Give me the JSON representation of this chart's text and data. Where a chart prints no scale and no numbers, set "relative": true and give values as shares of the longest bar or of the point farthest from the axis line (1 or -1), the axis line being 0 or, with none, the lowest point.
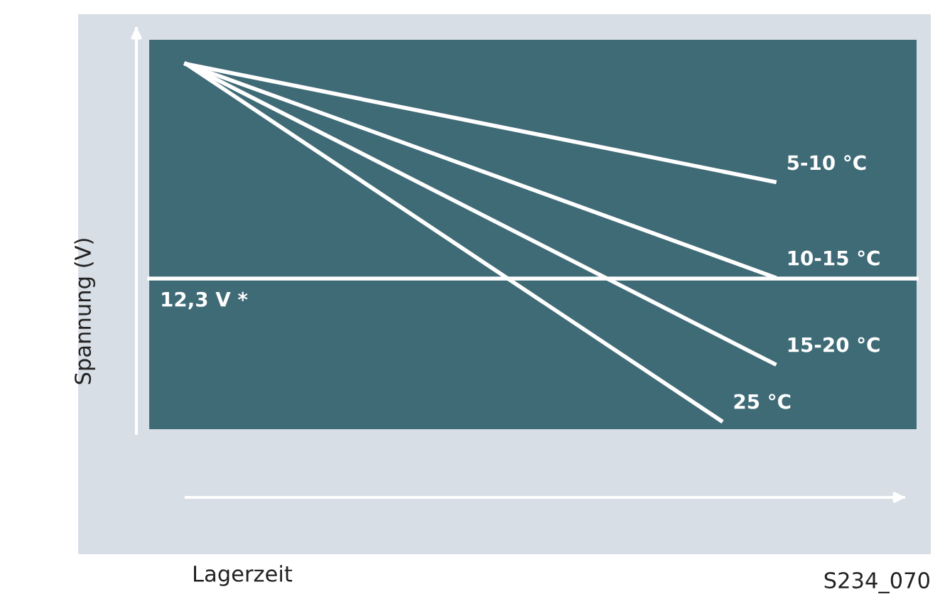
{
  "chart_data": {
    "type": "line",
    "relative": true,
    "xlabel": "Lagerzeit",
    "ylabel": "Spannung (V)",
    "categories": [
      null,
      null,
      null,
      null,
      null,
      null,
      null,
      null,
      null,
      null,
      null,
      null
    ],
    "series": [
      {
        "name": "5-10 °C",
        "color": "#ffffff",
        "values": [
          1,
          null,
          null,
          null,
          null,
          null,
          null,
          null,
          null,
          null,
          null,
          0.728
        ]
      },
      {
        "name": "10-15 °C",
        "color": "#ffffff",
        "values": [
          1,
          null,
          null,
          null,
          null,
          null,
          null,
          null,
          null,
          null,
          null,
          0.508
        ]
      },
      {
        "name": "15-20 °C",
        "color": "#ffffff",
        "values": [
          1,
          null,
          null,
          null,
          null,
          null,
          null,
          null,
          null,
          null,
          null,
          0.308
        ]
      },
      {
        "name": "25 °C",
        "color": "#ffffff",
        "values": [
          1,
          null,
          null,
          null,
          null,
          null,
          null,
          null,
          null,
          null,
          0.177,
          null
        ]
      }
    ],
    "ref_lines": [
      {
        "axis": "y",
        "value": 0.505,
        "label": "12,3 V *",
        "color": "#ffffff"
      }
    ],
    "annotations": [
      "S234_070"
    ],
    "grid": false,
    "legend": "right",
    "marker": "none",
    "line_style": "solid"
  }
}
